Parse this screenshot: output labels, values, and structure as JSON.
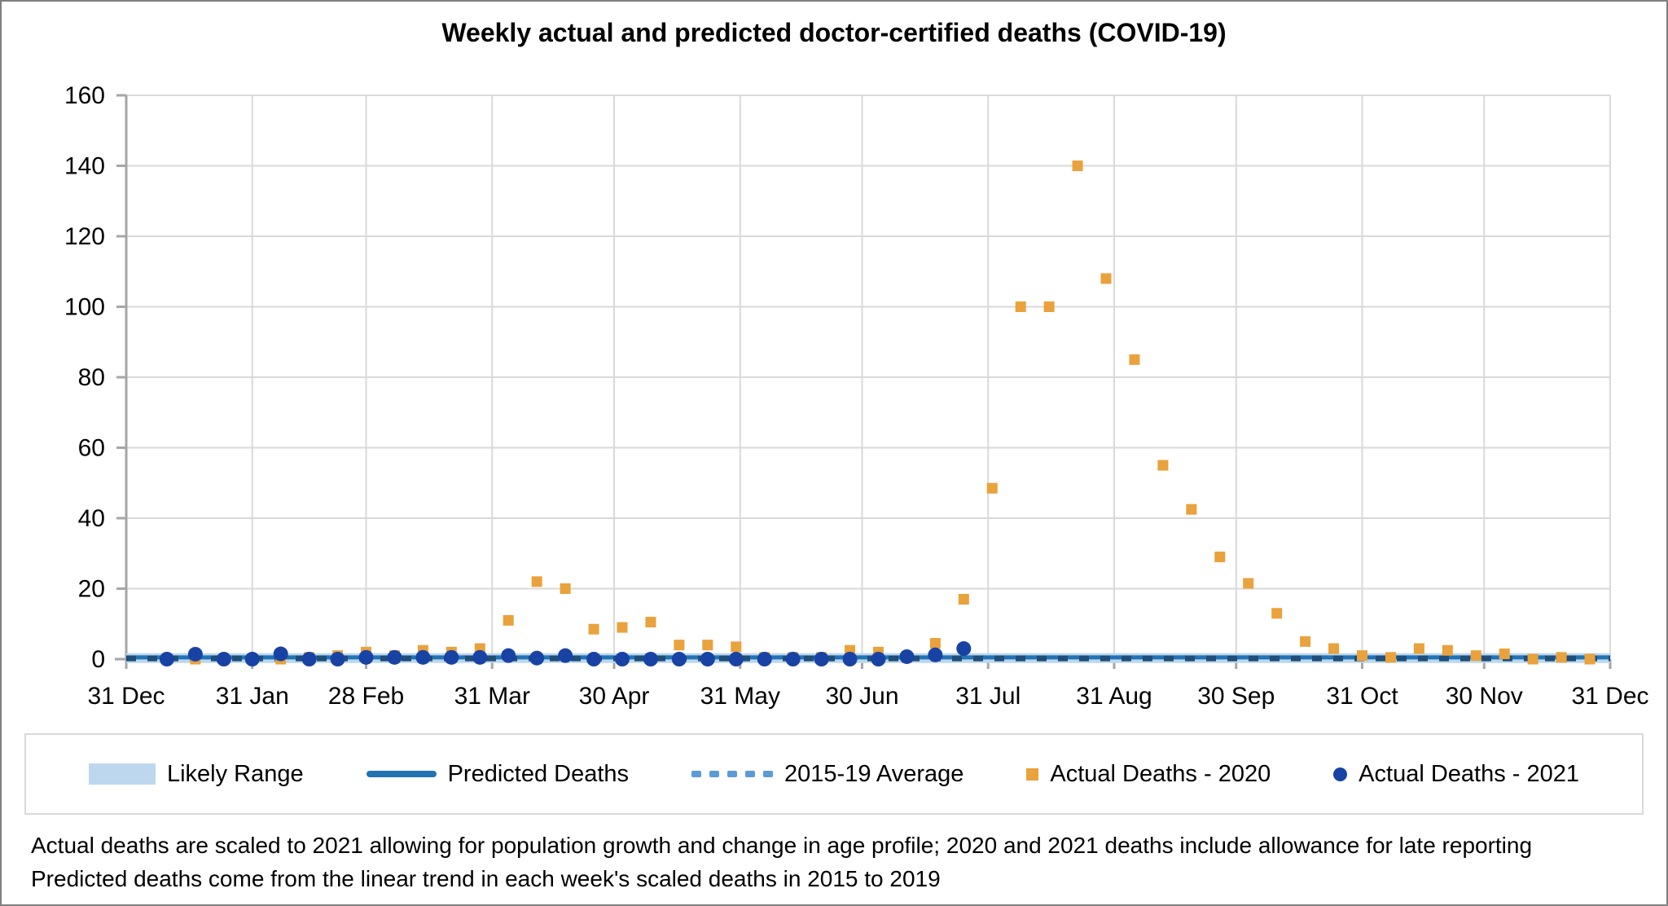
{
  "title": "Weekly actual and predicted doctor-certified deaths (COVID-19)",
  "colors": {
    "gridline": "#d9d9d9",
    "axis": "#a6a6a6",
    "band": "#bdd7ee",
    "predicted_line": "#2273b4",
    "average_dash": "#1f4e79",
    "average_dash_legend": "#5b9bd5",
    "actual_2020": "#e9a23c",
    "actual_2021": "#1843a5",
    "legend_border": "#d9d9d9",
    "text": "#000000"
  },
  "chart_data": {
    "type": "scatter",
    "title": "Weekly actual and predicted doctor-certified deaths (COVID-19)",
    "xlabel": "",
    "ylabel": "",
    "ylim": [
      0,
      160
    ],
    "yticks": [
      0,
      20,
      40,
      60,
      80,
      100,
      120,
      140,
      160
    ],
    "grid": true,
    "legend_position": "bottom",
    "x_axis": {
      "total_days": 365,
      "tick_days": [
        0,
        31,
        59,
        90,
        120,
        151,
        181,
        212,
        243,
        273,
        304,
        334,
        365
      ],
      "tick_labels": [
        "31 Dec",
        "31 Jan",
        "28 Feb",
        "31 Mar",
        "30 Apr",
        "31 May",
        "30 Jun",
        "31 Jul",
        "31 Aug",
        "30 Sep",
        "31 Oct",
        "30 Nov",
        "31 Dec"
      ]
    },
    "series": [
      {
        "name": "Likely Range",
        "type": "band",
        "low": -1.1,
        "high": 1.7,
        "span_days": [
          0,
          365
        ]
      },
      {
        "name": "Predicted Deaths",
        "type": "line",
        "value": 0.5,
        "span_days": [
          0,
          365
        ]
      },
      {
        "name": "2015-19 Average",
        "type": "dashed-line",
        "value": 0.2,
        "span_days": [
          0,
          365
        ]
      },
      {
        "name": "Actual Deaths - 2020",
        "type": "scatter-square",
        "start_day": 10,
        "interval_days": 7,
        "values": [
          0,
          0,
          0,
          0,
          0,
          0.5,
          1,
          2,
          1,
          2.5,
          2,
          3,
          11,
          22,
          20,
          8.5,
          9,
          10.5,
          4,
          4,
          3.5,
          0.5,
          0.5,
          0.5,
          2.5,
          2,
          0.5,
          4.5,
          17,
          48.5,
          100,
          100,
          140,
          108,
          85,
          55,
          42.5,
          29,
          21.5,
          13,
          5,
          3,
          1,
          0.5,
          3,
          2.5,
          1,
          1.5,
          0,
          0.5,
          0
        ]
      },
      {
        "name": "Actual Deaths - 2021",
        "type": "scatter-circle",
        "start_day": 10,
        "interval_days": 7,
        "values": [
          0,
          1.4,
          0,
          0,
          1.5,
          0,
          0,
          0.5,
          0.5,
          0.5,
          0.5,
          0.5,
          1,
          0.3,
          1,
          0,
          0,
          0,
          0,
          0,
          0,
          0,
          0,
          0,
          0,
          0,
          0.7,
          1.2,
          3
        ]
      }
    ]
  },
  "legend": {
    "items": [
      {
        "label": "Likely Range"
      },
      {
        "label": "Predicted Deaths"
      },
      {
        "label": "2015-19 Average"
      },
      {
        "label": "Actual Deaths - 2020"
      },
      {
        "label": "Actual Deaths - 2021"
      }
    ]
  },
  "footnotes": [
    "Actual deaths are scaled to 2021 allowing for population growth and change in age profile; 2020 and 2021 deaths include allowance for late reporting",
    "Predicted deaths come from the linear trend in each week's scaled deaths in 2015 to 2019"
  ]
}
